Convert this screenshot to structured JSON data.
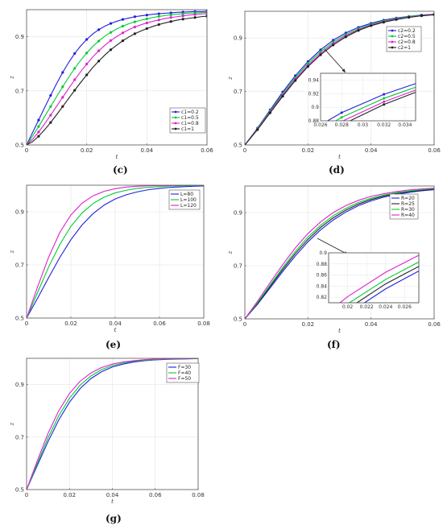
{
  "chart_data": [
    {
      "panel": "c",
      "type": "line",
      "xlabel": "t",
      "ylabel": "z",
      "xlim": [
        0,
        0.06
      ],
      "ylim": [
        0.5,
        1.0
      ],
      "xticks": [
        0,
        0.02,
        0.04,
        0.06
      ],
      "yticks": [
        0.5,
        0.7,
        0.9
      ],
      "legend_position": "bottom-right",
      "markers": true,
      "series": [
        {
          "name": "c1=0.2",
          "color": "#1f1fe0",
          "x": [
            0,
            0.002,
            0.004,
            0.006,
            0.008,
            0.01,
            0.012,
            0.014,
            0.016,
            0.018,
            0.02,
            0.022,
            0.024,
            0.026,
            0.028,
            0.03,
            0.032,
            0.034,
            0.036,
            0.038,
            0.04,
            0.042,
            0.044,
            0.046,
            0.048,
            0.05,
            0.052,
            0.054,
            0.056,
            0.058,
            0.06
          ],
          "values": [
            0.5,
            0.546,
            0.592,
            0.638,
            0.683,
            0.727,
            0.768,
            0.805,
            0.838,
            0.866,
            0.89,
            0.91,
            0.926,
            0.939,
            0.949,
            0.957,
            0.964,
            0.969,
            0.974,
            0.977,
            0.98,
            0.983,
            0.985,
            0.987,
            0.988,
            0.99,
            0.991,
            0.992,
            0.993,
            0.993,
            0.994
          ]
        },
        {
          "name": "c1=0.5",
          "color": "#00cc33",
          "x": [
            0,
            0.002,
            0.004,
            0.006,
            0.008,
            0.01,
            0.012,
            0.014,
            0.016,
            0.018,
            0.02,
            0.022,
            0.024,
            0.026,
            0.028,
            0.03,
            0.032,
            0.034,
            0.036,
            0.038,
            0.04,
            0.042,
            0.044,
            0.046,
            0.048,
            0.05,
            0.052,
            0.054,
            0.056,
            0.058,
            0.06
          ],
          "values": [
            0.5,
            0.533,
            0.568,
            0.605,
            0.642,
            0.679,
            0.715,
            0.75,
            0.783,
            0.813,
            0.84,
            0.864,
            0.884,
            0.902,
            0.916,
            0.929,
            0.939,
            0.948,
            0.955,
            0.961,
            0.966,
            0.971,
            0.975,
            0.978,
            0.981,
            0.983,
            0.985,
            0.987,
            0.988,
            0.989,
            0.99
          ]
        },
        {
          "name": "c1=0.8",
          "color": "#e020d0",
          "x": [
            0,
            0.002,
            0.004,
            0.006,
            0.008,
            0.01,
            0.012,
            0.014,
            0.016,
            0.018,
            0.02,
            0.022,
            0.024,
            0.026,
            0.028,
            0.03,
            0.032,
            0.034,
            0.036,
            0.038,
            0.04,
            0.042,
            0.044,
            0.046,
            0.048,
            0.05,
            0.052,
            0.054,
            0.056,
            0.058,
            0.06
          ],
          "values": [
            0.5,
            0.521,
            0.548,
            0.578,
            0.61,
            0.643,
            0.676,
            0.709,
            0.741,
            0.771,
            0.799,
            0.825,
            0.848,
            0.868,
            0.886,
            0.901,
            0.914,
            0.926,
            0.936,
            0.944,
            0.951,
            0.957,
            0.962,
            0.967,
            0.971,
            0.974,
            0.977,
            0.98,
            0.982,
            0.984,
            0.985
          ]
        },
        {
          "name": "c1=1",
          "color": "#222222",
          "x": [
            0,
            0.002,
            0.004,
            0.006,
            0.008,
            0.01,
            0.012,
            0.014,
            0.016,
            0.018,
            0.02,
            0.022,
            0.024,
            0.026,
            0.028,
            0.03,
            0.032,
            0.034,
            0.036,
            0.038,
            0.04,
            0.042,
            0.044,
            0.046,
            0.048,
            0.05,
            0.052,
            0.054,
            0.056,
            0.058,
            0.06
          ],
          "values": [
            0.5,
            0.512,
            0.532,
            0.556,
            0.583,
            0.612,
            0.642,
            0.672,
            0.702,
            0.731,
            0.759,
            0.786,
            0.81,
            0.832,
            0.852,
            0.869,
            0.885,
            0.899,
            0.911,
            0.921,
            0.93,
            0.938,
            0.945,
            0.951,
            0.956,
            0.961,
            0.965,
            0.968,
            0.971,
            0.974,
            0.976
          ]
        }
      ]
    },
    {
      "panel": "d",
      "type": "line",
      "xlabel": "t",
      "ylabel": "z",
      "xlim": [
        0,
        0.06
      ],
      "ylim": [
        0.5,
        1.0
      ],
      "xticks": [
        0,
        0.02,
        0.04,
        0.06
      ],
      "yticks": [
        0.5,
        0.7,
        0.9
      ],
      "legend_position": "top-right",
      "markers": true,
      "series": [
        {
          "name": "c2=0.2",
          "color": "#1f1fe0",
          "x": [
            0,
            0.004,
            0.008,
            0.012,
            0.016,
            0.02,
            0.024,
            0.028,
            0.032,
            0.036,
            0.04,
            0.044,
            0.048,
            0.052,
            0.056,
            0.06
          ],
          "values": [
            0.5,
            0.563,
            0.631,
            0.698,
            0.759,
            0.812,
            0.856,
            0.892,
            0.919,
            0.94,
            0.955,
            0.967,
            0.975,
            0.981,
            0.986,
            0.989
          ]
        },
        {
          "name": "c2=0.5",
          "color": "#00cc33",
          "x": [
            0,
            0.004,
            0.008,
            0.012,
            0.016,
            0.02,
            0.024,
            0.028,
            0.032,
            0.036,
            0.04,
            0.044,
            0.048,
            0.052,
            0.056,
            0.06
          ],
          "values": [
            0.5,
            0.561,
            0.627,
            0.692,
            0.752,
            0.805,
            0.849,
            0.885,
            0.913,
            0.935,
            0.951,
            0.964,
            0.973,
            0.98,
            0.985,
            0.988
          ]
        },
        {
          "name": "c2=0.8",
          "color": "#e020d0",
          "x": [
            0,
            0.004,
            0.008,
            0.012,
            0.016,
            0.02,
            0.024,
            0.028,
            0.032,
            0.036,
            0.04,
            0.044,
            0.048,
            0.052,
            0.056,
            0.06
          ],
          "values": [
            0.5,
            0.559,
            0.623,
            0.687,
            0.746,
            0.798,
            0.842,
            0.879,
            0.908,
            0.931,
            0.948,
            0.961,
            0.971,
            0.978,
            0.984,
            0.988
          ]
        },
        {
          "name": "c2=1",
          "color": "#222222",
          "x": [
            0,
            0.004,
            0.008,
            0.012,
            0.016,
            0.02,
            0.024,
            0.028,
            0.032,
            0.036,
            0.04,
            0.044,
            0.048,
            0.052,
            0.056,
            0.06
          ],
          "values": [
            0.5,
            0.557,
            0.62,
            0.682,
            0.741,
            0.793,
            0.837,
            0.874,
            0.904,
            0.928,
            0.946,
            0.959,
            0.969,
            0.977,
            0.983,
            0.987
          ]
        }
      ],
      "inset": {
        "xlim": [
          0.026,
          0.035
        ],
        "ylim": [
          0.88,
          0.95
        ],
        "xticks": [
          0.026,
          0.028,
          0.03,
          0.032,
          0.034
        ],
        "yticks": [
          0.88,
          0.9,
          0.92,
          0.94
        ]
      }
    },
    {
      "panel": "e",
      "type": "line",
      "xlabel": "t",
      "ylabel": "z",
      "xlim": [
        0,
        0.08
      ],
      "ylim": [
        0.5,
        1.0
      ],
      "xticks": [
        0,
        0.02,
        0.04,
        0.06,
        0.08
      ],
      "yticks": [
        0.5,
        0.7,
        0.9
      ],
      "legend_position": "top-right",
      "markers": false,
      "series": [
        {
          "name": "L=80",
          "color": "#1f1fe0",
          "x": [
            0,
            0.005,
            0.01,
            0.015,
            0.02,
            0.025,
            0.03,
            0.035,
            0.04,
            0.045,
            0.05,
            0.055,
            0.06,
            0.065,
            0.07,
            0.075,
            0.08
          ],
          "values": [
            0.5,
            0.575,
            0.653,
            0.728,
            0.795,
            0.85,
            0.893,
            0.925,
            0.948,
            0.964,
            0.975,
            0.983,
            0.988,
            0.992,
            0.994,
            0.996,
            0.997
          ]
        },
        {
          "name": "L=100",
          "color": "#00cc33",
          "x": [
            0,
            0.005,
            0.01,
            0.015,
            0.02,
            0.025,
            0.03,
            0.035,
            0.04,
            0.045,
            0.05,
            0.055,
            0.06,
            0.065,
            0.07,
            0.075,
            0.08
          ],
          "values": [
            0.5,
            0.597,
            0.693,
            0.777,
            0.845,
            0.895,
            0.931,
            0.955,
            0.971,
            0.981,
            0.988,
            0.992,
            0.995,
            0.997,
            0.998,
            0.999,
            0.999
          ]
        },
        {
          "name": "L=120",
          "color": "#e020d0",
          "x": [
            0,
            0.005,
            0.01,
            0.015,
            0.02,
            0.025,
            0.03,
            0.035,
            0.04,
            0.045,
            0.05,
            0.055,
            0.06,
            0.065,
            0.07,
            0.075,
            0.08
          ],
          "values": [
            0.5,
            0.618,
            0.73,
            0.822,
            0.888,
            0.932,
            0.96,
            0.977,
            0.987,
            0.993,
            0.996,
            0.998,
            0.999,
            0.999,
            1.0,
            1.0,
            1.0
          ]
        }
      ]
    },
    {
      "panel": "f",
      "type": "line",
      "xlabel": "t",
      "ylabel": "z",
      "xlim": [
        0,
        0.06
      ],
      "ylim": [
        0.5,
        1.0
      ],
      "xticks": [
        0,
        0.02,
        0.04,
        0.06
      ],
      "yticks": [
        0.5,
        0.7,
        0.9
      ],
      "legend_position": "top-right",
      "markers": false,
      "series": [
        {
          "name": "R=20",
          "color": "#1f1fe0",
          "x": [
            0,
            0.004,
            0.008,
            0.012,
            0.016,
            0.02,
            0.024,
            0.028,
            0.032,
            0.036,
            0.04,
            0.044,
            0.048,
            0.052,
            0.056,
            0.06
          ],
          "values": [
            0.5,
            0.555,
            0.616,
            0.678,
            0.737,
            0.79,
            0.835,
            0.872,
            0.902,
            0.926,
            0.944,
            0.958,
            0.968,
            0.976,
            0.982,
            0.986
          ]
        },
        {
          "name": "R=25",
          "color": "#222222",
          "x": [
            0,
            0.004,
            0.008,
            0.012,
            0.016,
            0.02,
            0.024,
            0.028,
            0.032,
            0.036,
            0.04,
            0.044,
            0.048,
            0.052,
            0.056,
            0.06
          ],
          "values": [
            0.5,
            0.558,
            0.622,
            0.686,
            0.746,
            0.799,
            0.844,
            0.88,
            0.909,
            0.932,
            0.949,
            0.962,
            0.972,
            0.979,
            0.984,
            0.988
          ]
        },
        {
          "name": "R=30",
          "color": "#00cc33",
          "x": [
            0,
            0.004,
            0.008,
            0.012,
            0.016,
            0.02,
            0.024,
            0.028,
            0.032,
            0.036,
            0.04,
            0.044,
            0.048,
            0.052,
            0.056,
            0.06
          ],
          "values": [
            0.5,
            0.561,
            0.627,
            0.693,
            0.754,
            0.808,
            0.852,
            0.888,
            0.916,
            0.938,
            0.954,
            0.966,
            0.975,
            0.981,
            0.986,
            0.99
          ]
        },
        {
          "name": "R=40",
          "color": "#e020d0",
          "x": [
            0,
            0.004,
            0.008,
            0.012,
            0.016,
            0.02,
            0.024,
            0.028,
            0.032,
            0.036,
            0.04,
            0.044,
            0.048,
            0.052,
            0.056,
            0.06
          ],
          "values": [
            0.5,
            0.566,
            0.636,
            0.704,
            0.767,
            0.821,
            0.865,
            0.9,
            0.926,
            0.946,
            0.961,
            0.971,
            0.979,
            0.985,
            0.989,
            0.992
          ]
        }
      ],
      "inset": {
        "xlim": [
          0.018,
          0.0275
        ],
        "ylim": [
          0.81,
          0.9
        ],
        "xticks": [
          0.02,
          0.022,
          0.024,
          0.026
        ],
        "yticks": [
          0.82,
          0.84,
          0.86,
          0.88,
          0.9
        ]
      }
    },
    {
      "panel": "g",
      "type": "line",
      "xlabel": "t",
      "ylabel": "z",
      "xlim": [
        0,
        0.08
      ],
      "ylim": [
        0.5,
        1.0
      ],
      "xticks": [
        0,
        0.02,
        0.04,
        0.06,
        0.08
      ],
      "yticks": [
        0.5,
        0.7,
        0.9
      ],
      "legend_position": "top-right",
      "markers": false,
      "series": [
        {
          "name": "F=30",
          "color": "#1f1fe0",
          "x": [
            0,
            0.005,
            0.01,
            0.015,
            0.02,
            0.025,
            0.03,
            0.035,
            0.04,
            0.045,
            0.05,
            0.055,
            0.06,
            0.065,
            0.07,
            0.075,
            0.08
          ],
          "values": [
            0.5,
            0.592,
            0.683,
            0.765,
            0.833,
            0.885,
            0.923,
            0.949,
            0.967,
            0.978,
            0.986,
            0.991,
            0.994,
            0.996,
            0.997,
            0.998,
            0.999
          ]
        },
        {
          "name": "F=40",
          "color": "#00cc33",
          "x": [
            0,
            0.005,
            0.01,
            0.015,
            0.02,
            0.025,
            0.03,
            0.035,
            0.04,
            0.045,
            0.05,
            0.055,
            0.06,
            0.065,
            0.07,
            0.075,
            0.08
          ],
          "values": [
            0.5,
            0.6,
            0.697,
            0.781,
            0.848,
            0.898,
            0.933,
            0.957,
            0.972,
            0.982,
            0.989,
            0.993,
            0.995,
            0.997,
            0.998,
            0.999,
            0.999
          ]
        },
        {
          "name": "F=50",
          "color": "#e020d0",
          "x": [
            0,
            0.005,
            0.01,
            0.015,
            0.02,
            0.025,
            0.03,
            0.035,
            0.04,
            0.045,
            0.05,
            0.055,
            0.06,
            0.065,
            0.07,
            0.075,
            0.08
          ],
          "values": [
            0.5,
            0.61,
            0.714,
            0.8,
            0.866,
            0.913,
            0.944,
            0.965,
            0.978,
            0.986,
            0.991,
            0.995,
            0.997,
            0.998,
            0.999,
            0.999,
            1.0
          ]
        }
      ]
    }
  ],
  "captions": [
    "(c)",
    "(d)",
    "(e)",
    "(f)",
    "(g)"
  ]
}
